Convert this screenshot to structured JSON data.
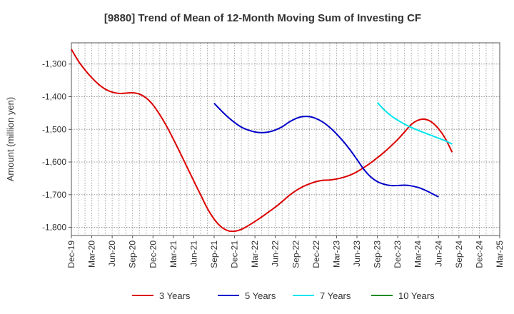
{
  "chart_data": {
    "type": "line",
    "title": "[9880]  Trend of Mean of 12-Month Moving Sum of Investing CF",
    "ylabel": "Amount (million yen)",
    "xlabel": "",
    "x_ticks": [
      "Dec-19",
      "Mar-20",
      "Jun-20",
      "Sep-20",
      "Dec-20",
      "Mar-21",
      "Jun-21",
      "Sep-21",
      "Dec-21",
      "Mar-22",
      "Jun-22",
      "Sep-22",
      "Dec-22",
      "Mar-23",
      "Jun-23",
      "Sep-23",
      "Dec-23",
      "Mar-24",
      "Jun-24",
      "Sep-24",
      "Dec-24",
      "Mar-25"
    ],
    "y_ticks": [
      -1300,
      -1400,
      -1500,
      -1600,
      -1700,
      -1800
    ],
    "y_tick_labels": [
      "-1,300",
      "-1,400",
      "-1,500",
      "-1,600",
      "-1,700",
      "-1,800"
    ],
    "ylim": [
      -1825,
      -1235
    ],
    "xlim": [
      "Dec-19",
      "Mar-25"
    ],
    "grid": true,
    "legend_position": "bottom",
    "series": [
      {
        "name": "3 Years",
        "color": "#dd0000",
        "points": [
          [
            "Dec-19",
            -1255
          ],
          [
            "Jan-20",
            -1290
          ],
          [
            "Feb-20",
            -1318
          ],
          [
            "Mar-20",
            -1342
          ],
          [
            "Apr-20",
            -1362
          ],
          [
            "May-20",
            -1377
          ],
          [
            "Jun-20",
            -1386
          ],
          [
            "Jul-20",
            -1390
          ],
          [
            "Aug-20",
            -1389
          ],
          [
            "Sep-20",
            -1388
          ],
          [
            "Oct-20",
            -1392
          ],
          [
            "Nov-20",
            -1404
          ],
          [
            "Dec-20",
            -1425
          ],
          [
            "Jan-21",
            -1455
          ],
          [
            "Feb-21",
            -1490
          ],
          [
            "Mar-21",
            -1530
          ],
          [
            "Apr-21",
            -1572
          ],
          [
            "May-21",
            -1615
          ],
          [
            "Jun-21",
            -1658
          ],
          [
            "Jul-21",
            -1700
          ],
          [
            "Aug-21",
            -1742
          ],
          [
            "Sep-21",
            -1775
          ],
          [
            "Oct-21",
            -1798
          ],
          [
            "Nov-21",
            -1810
          ],
          [
            "Dec-21",
            -1812
          ],
          [
            "Jan-22",
            -1806
          ],
          [
            "Feb-22",
            -1795
          ],
          [
            "Mar-22",
            -1782
          ],
          [
            "Apr-22",
            -1768
          ],
          [
            "May-22",
            -1753
          ],
          [
            "Jun-22",
            -1738
          ],
          [
            "Jul-22",
            -1721
          ],
          [
            "Aug-22",
            -1703
          ],
          [
            "Sep-22",
            -1688
          ],
          [
            "Oct-22",
            -1676
          ],
          [
            "Nov-22",
            -1667
          ],
          [
            "Dec-22",
            -1660
          ],
          [
            "Jan-23",
            -1656
          ],
          [
            "Feb-23",
            -1655
          ],
          [
            "Mar-23",
            -1652
          ],
          [
            "Apr-23",
            -1647
          ],
          [
            "May-23",
            -1640
          ],
          [
            "Jun-23",
            -1630
          ],
          [
            "Jul-23",
            -1617
          ],
          [
            "Aug-23",
            -1603
          ],
          [
            "Sep-23",
            -1587
          ],
          [
            "Oct-23",
            -1570
          ],
          [
            "Nov-23",
            -1551
          ],
          [
            "Dec-23",
            -1531
          ],
          [
            "Jan-24",
            -1508
          ],
          [
            "Feb-24",
            -1485
          ],
          [
            "Mar-24",
            -1472
          ],
          [
            "Apr-24",
            -1469
          ],
          [
            "May-24",
            -1478
          ],
          [
            "Jun-24",
            -1498
          ],
          [
            "Jul-24",
            -1528
          ],
          [
            "Aug-24",
            -1570
          ]
        ]
      },
      {
        "name": "5 Years",
        "color": "#0000cc",
        "points": [
          [
            "Sep-21",
            -1420
          ],
          [
            "Oct-21",
            -1442
          ],
          [
            "Nov-21",
            -1462
          ],
          [
            "Dec-21",
            -1479
          ],
          [
            "Jan-22",
            -1493
          ],
          [
            "Feb-22",
            -1502
          ],
          [
            "Mar-22",
            -1508
          ],
          [
            "Apr-22",
            -1510
          ],
          [
            "May-22",
            -1508
          ],
          [
            "Jun-22",
            -1502
          ],
          [
            "Jul-22",
            -1492
          ],
          [
            "Aug-22",
            -1478
          ],
          [
            "Sep-22",
            -1467
          ],
          [
            "Oct-22",
            -1461
          ],
          [
            "Nov-22",
            -1461
          ],
          [
            "Dec-22",
            -1467
          ],
          [
            "Jan-23",
            -1478
          ],
          [
            "Feb-23",
            -1494
          ],
          [
            "Mar-23",
            -1514
          ],
          [
            "Apr-23",
            -1537
          ],
          [
            "May-23",
            -1563
          ],
          [
            "Jun-23",
            -1592
          ],
          [
            "Jul-23",
            -1622
          ],
          [
            "Aug-23",
            -1645
          ],
          [
            "Sep-23",
            -1660
          ],
          [
            "Oct-23",
            -1668
          ],
          [
            "Nov-23",
            -1672
          ],
          [
            "Dec-23",
            -1672
          ],
          [
            "Jan-24",
            -1671
          ],
          [
            "Feb-24",
            -1673
          ],
          [
            "Mar-24",
            -1678
          ],
          [
            "Apr-24",
            -1686
          ],
          [
            "May-24",
            -1696
          ],
          [
            "Jun-24",
            -1707
          ]
        ]
      },
      {
        "name": "7 Years",
        "color": "#00e5ee",
        "points": [
          [
            "Sep-23",
            -1418
          ],
          [
            "Oct-23",
            -1440
          ],
          [
            "Nov-23",
            -1458
          ],
          [
            "Dec-23",
            -1472
          ],
          [
            "Jan-24",
            -1484
          ],
          [
            "Feb-24",
            -1494
          ],
          [
            "Mar-24",
            -1503
          ],
          [
            "Apr-24",
            -1511
          ],
          [
            "May-24",
            -1519
          ],
          [
            "Jun-24",
            -1527
          ],
          [
            "Jul-24",
            -1535
          ],
          [
            "Aug-24",
            -1545
          ]
        ]
      },
      {
        "name": "10 Years",
        "color": "#228b22",
        "points": []
      }
    ]
  }
}
